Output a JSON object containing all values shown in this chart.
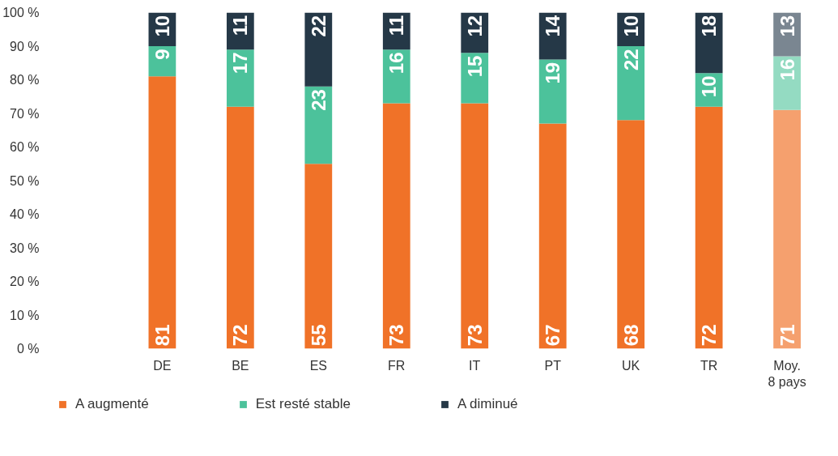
{
  "chart_data": {
    "type": "bar",
    "stacked": true,
    "data_labels": true,
    "grid": false,
    "legend": "bottom",
    "categories": [
      "DE",
      "BE",
      "ES",
      "FR",
      "IT",
      "PT",
      "UK",
      "TR",
      "Moy.\n8 pays"
    ],
    "series": [
      {
        "name": "A augmenté",
        "color": "#f07228",
        "colors": [
          "#f07228",
          "#f07228",
          "#f07228",
          "#f07228",
          "#f07228",
          "#f07228",
          "#f07228",
          "#f07228",
          "#f5a06e"
        ],
        "values": [
          81,
          72,
          55,
          73,
          73,
          67,
          68,
          72,
          71
        ]
      },
      {
        "name": "Est resté stable",
        "color": "#4cc29b",
        "colors": [
          "#4cc29b",
          "#4cc29b",
          "#4cc29b",
          "#4cc29b",
          "#4cc29b",
          "#4cc29b",
          "#4cc29b",
          "#4cc29b",
          "#94dbc2"
        ],
        "values": [
          9,
          17,
          23,
          16,
          15,
          19,
          22,
          10,
          16
        ]
      },
      {
        "name": "A diminué",
        "color": "#253847",
        "colors": [
          "#253847",
          "#253847",
          "#253847",
          "#253847",
          "#253847",
          "#253847",
          "#253847",
          "#253847",
          "#7a8691"
        ],
        "values": [
          10,
          11,
          22,
          11,
          12,
          14,
          10,
          18,
          13
        ]
      }
    ],
    "ylim": [
      0,
      100
    ],
    "yticks": [
      {
        "value": 0,
        "label": "0 %"
      },
      {
        "value": 10,
        "label": "10 %"
      },
      {
        "value": 20,
        "label": "20 %"
      },
      {
        "value": 30,
        "label": "30 %"
      },
      {
        "value": 40,
        "label": "40 %"
      },
      {
        "value": 50,
        "label": "50 %"
      },
      {
        "value": 60,
        "label": "60 %"
      },
      {
        "value": 70,
        "label": "70 %"
      },
      {
        "value": 80,
        "label": "80 %"
      },
      {
        "value": 90,
        "label": "90 %"
      },
      {
        "value": 100,
        "label": "100 %"
      }
    ]
  }
}
